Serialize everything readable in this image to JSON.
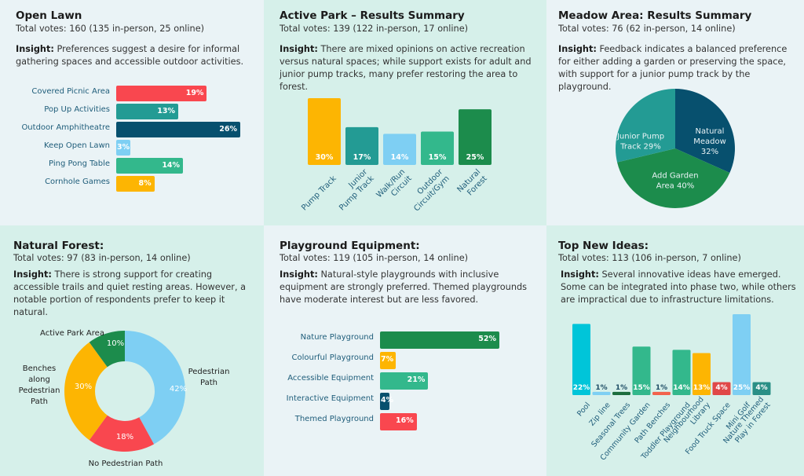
{
  "colors": {
    "red": "#f9474f",
    "teal": "#239b94",
    "navy": "#07506e",
    "lightblue": "#7ecff3",
    "mint": "#33b88c",
    "yellow": "#fdb502",
    "green": "#1c8c4c",
    "cyan": "#00c5d9",
    "darkgreen": "#1c6d3e",
    "coral": "#f2634d",
    "tealdark": "#2a8f86",
    "label": "#1f5d7a"
  },
  "panels": {
    "open_lawn": {
      "title": "Open Lawn",
      "votes": "Total votes: 160 (135 in-person, 25 online)",
      "insight_label": "Insight:",
      "insight_text": " Preferences suggest a desire for informal gathering spaces and accessible outdoor activities."
    },
    "active_park": {
      "title": "Active Park – Results Summary",
      "votes": "Total votes: 139 (122 in-person, 17 online)",
      "insight_label": "Insight:",
      "insight_text": " There are mixed opinions on active recreation versus natural spaces; while support exists for adult and junior pump tracks, many prefer restoring the area to forest."
    },
    "meadow": {
      "title": "Meadow Area: Results Summary",
      "votes": "Total votes: 76 (62 in-person, 14 online)",
      "insight_label": "Insight:",
      "insight_text": " Feedback indicates a balanced preference for either adding a garden or preserving the space, with support for a junior pump track by the playground."
    },
    "natural_forest": {
      "title": "Natural Forest:",
      "votes": "Total votes: 97 (83 in-person, 14 online)",
      "insight_label": "Insight:",
      "insight_text": " There is strong support for creating accessible trails and quiet resting areas. However, a notable portion of respondents prefer to keep it natural."
    },
    "playground": {
      "title": "Playground Equipment:",
      "votes": "Total votes: 119 (105 in-person, 14 online)",
      "insight_label": "Insight:",
      "insight_text": " Natural-style playgrounds with inclusive equipment are strongly preferred. Themed playgrounds have moderate interest but are less favored."
    },
    "new_ideas": {
      "title": "Top New Ideas:",
      "votes": "Total votes: 113 (106 in-person, 7 online)",
      "insight_label": "Insight:",
      "insight_text": " Several innovative ideas have emerged. Some can be integrated into phase two, while others are impractical due to infrastructure limitations."
    }
  },
  "chart_data": [
    {
      "id": "open_lawn",
      "type": "bar",
      "orientation": "horizontal",
      "title": "Open Lawn",
      "categories": [
        "Covered Picnic Area",
        "Pop Up Activities",
        "Outdoor Amphitheatre",
        "Keep Open Lawn",
        "Ping Pong Table",
        "Cornhole Games"
      ],
      "values": [
        19,
        13,
        26,
        3,
        14,
        8
      ],
      "value_labels": [
        "19%",
        "13%",
        "26%",
        "3%",
        "14%",
        "8%"
      ],
      "colors": [
        "#f9474f",
        "#239b94",
        "#07506e",
        "#7ecff3",
        "#33b88c",
        "#fdb502"
      ],
      "unit": "%",
      "xlim": [
        0,
        26
      ],
      "grid": false
    },
    {
      "id": "active_park",
      "type": "bar",
      "orientation": "vertical",
      "title": "Active Park – Results Summary",
      "categories": [
        "Pump Track",
        "Junior Pump Track",
        "Walk/Run Circuit",
        "Outdoor Circuit/Gym",
        "Natural Forest"
      ],
      "category_lines": [
        [
          "Pump Track"
        ],
        [
          "Junior",
          "Pump Track"
        ],
        [
          "Walk/Run",
          "Circuit"
        ],
        [
          "Outdoor",
          "Circuit/Gym"
        ],
        [
          "Natural",
          "Forest"
        ]
      ],
      "values": [
        30,
        17,
        14,
        15,
        25
      ],
      "value_labels": [
        "30%",
        "17%",
        "14%",
        "15%",
        "25%"
      ],
      "colors": [
        "#fdb502",
        "#239b94",
        "#7ecff3",
        "#33b88c",
        "#1c8c4c"
      ],
      "unit": "%",
      "ylim": [
        0,
        30
      ],
      "grid": false
    },
    {
      "id": "meadow",
      "type": "pie",
      "title": "Meadow Area: Results Summary",
      "categories": [
        "Natural Meadow",
        "Add Garden Area",
        "Junior Pump Track"
      ],
      "values": [
        32,
        40,
        29
      ],
      "slice_labels": [
        [
          "Natural",
          "Meadow",
          "32%"
        ],
        [
          "Add Garden",
          "Area 40%"
        ],
        [
          "Junior Pump",
          "Track 29%"
        ]
      ],
      "colors": [
        "#07506e",
        "#1c8c4c",
        "#239b94"
      ],
      "unit": "%"
    },
    {
      "id": "natural_forest",
      "type": "pie",
      "donut": true,
      "title": "Natural Forest:",
      "categories": [
        "Pedestrian Path",
        "No Pedestrian Path",
        "Benches along Pedestrian Path",
        "Active Park Area"
      ],
      "outer_labels": [
        [
          "Pedestrian",
          "Path"
        ],
        [
          "No Pedestrian Path"
        ],
        [
          "Benches",
          "along",
          "Pedestrian",
          "Path"
        ],
        [
          "Active Park Area"
        ]
      ],
      "values": [
        42,
        18,
        30,
        10
      ],
      "value_labels": [
        "42%",
        "18%",
        "30%",
        "10%"
      ],
      "colors": [
        "#7ecff3",
        "#f9474f",
        "#fdb502",
        "#1c8c4c"
      ],
      "unit": "%"
    },
    {
      "id": "playground",
      "type": "bar",
      "orientation": "horizontal",
      "title": "Playground Equipment:",
      "categories": [
        "Nature Playground",
        "Colourful Playground",
        "Accessible Equipment",
        "Interactive Equipment",
        "Themed Playground"
      ],
      "values": [
        52,
        7,
        21,
        4,
        16
      ],
      "value_labels": [
        "52%",
        "7%",
        "21%",
        "4%",
        "16%"
      ],
      "colors": [
        "#1c8c4c",
        "#fdb502",
        "#33b88c",
        "#07506e",
        "#f9474f"
      ],
      "unit": "%",
      "xlim": [
        0,
        52
      ],
      "grid": false
    },
    {
      "id": "new_ideas",
      "type": "bar",
      "orientation": "vertical",
      "title": "Top New Ideas:",
      "categories": [
        "Pool",
        "Zip line",
        "Seasonal Trees",
        "Community Garden",
        "Path Benches",
        "Toddler Playground",
        "Neighbourhood Library",
        "Food Truck Space",
        "Mini Golf",
        "Nature Themed Play in Forest"
      ],
      "category_lines": [
        [
          "Pool"
        ],
        [
          "Zip line"
        ],
        [
          "Seasonal Trees"
        ],
        [
          "Community Garden"
        ],
        [
          "Path Benches"
        ],
        [
          "Toddler Playground"
        ],
        [
          "Neighbourhood",
          "Library"
        ],
        [
          "Food Truck Space"
        ],
        [
          "Mini Golf"
        ],
        [
          "Nature Themed",
          "Play in Forest"
        ]
      ],
      "values": [
        22,
        1,
        1,
        15,
        1,
        14,
        13,
        4,
        25,
        4
      ],
      "value_labels": [
        "22%",
        "1%",
        "1%",
        "15%",
        "1%",
        "14%",
        "13%",
        "4%",
        "25%",
        "4%"
      ],
      "colors": [
        "#00c5d9",
        "#7ecff3",
        "#1c6d3e",
        "#33b88c",
        "#f2634d",
        "#33b88c",
        "#fdb502",
        "#e04848",
        "#7ecff3",
        "#2a8f86"
      ],
      "dark_labels": [
        false,
        true,
        true,
        false,
        true,
        false,
        false,
        false,
        false,
        false
      ],
      "unit": "%",
      "ylim": [
        0,
        25
      ],
      "grid": false
    }
  ]
}
